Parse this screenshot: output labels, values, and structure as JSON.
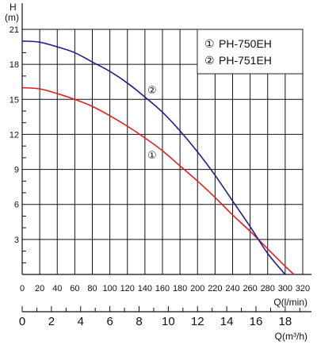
{
  "chart_data": {
    "type": "line",
    "title": "",
    "ylabel": "H",
    "ylabel_unit": "(m)",
    "xlabel": "Q(l/min)",
    "x2label": "Q(m³/h)",
    "ylim": [
      0,
      21
    ],
    "xlim": [
      0,
      320
    ],
    "x2lim": [
      0,
      19.2
    ],
    "y_ticks": [
      "3",
      "6",
      "9",
      "12",
      "15",
      "18",
      "21"
    ],
    "x_ticks": [
      "0",
      "20",
      "40",
      "60",
      "80",
      "100",
      "120",
      "140",
      "160",
      "180",
      "200",
      "220",
      "240",
      "260",
      "280",
      "300",
      "320"
    ],
    "x2_ticks": [
      "0",
      "2",
      "4",
      "6",
      "8",
      "10",
      "12",
      "14",
      "16",
      "18"
    ],
    "grid": true,
    "legend_position": "top-right",
    "legend": [
      {
        "marker": "①",
        "label": "PH-750EH"
      },
      {
        "marker": "②",
        "label": "PH-751EH"
      }
    ],
    "series": [
      {
        "name": "PH-750EH",
        "marker": "①",
        "color": "#e0201e",
        "x": [
          0,
          20,
          40,
          60,
          80,
          100,
          120,
          140,
          160,
          180,
          200,
          220,
          240,
          260,
          280,
          300,
          310
        ],
        "y": [
          16.0,
          15.9,
          15.5,
          15.0,
          14.4,
          13.6,
          12.7,
          11.7,
          10.6,
          9.3,
          8.0,
          6.6,
          5.1,
          3.7,
          2.2,
          0.7,
          0.0
        ]
      },
      {
        "name": "PH-751EH",
        "marker": "②",
        "color": "#1e1e8c",
        "x": [
          0,
          20,
          40,
          60,
          80,
          100,
          120,
          140,
          160,
          180,
          200,
          220,
          240,
          260,
          280,
          300
        ],
        "y": [
          20.0,
          19.9,
          19.5,
          19.0,
          18.2,
          17.4,
          16.4,
          15.2,
          13.9,
          12.3,
          10.5,
          8.5,
          6.3,
          4.1,
          1.8,
          0.0
        ]
      }
    ]
  }
}
